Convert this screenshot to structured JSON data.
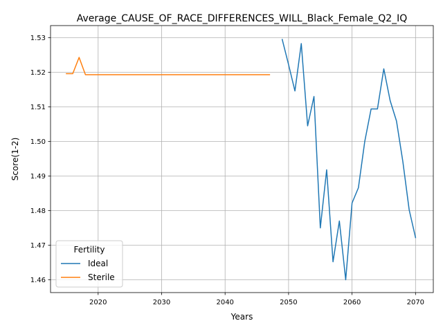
{
  "chart_data": {
    "type": "line",
    "title": "Average_CAUSE_OF_RACE_DIFFERENCES_WILL_Black_Female_Q2_IQ",
    "xlabel": "Years",
    "ylabel": "Score(1-2)",
    "xlim": [
      2012.5,
      2072.8
    ],
    "ylim": [
      1.4563,
      1.5335
    ],
    "xticks": [
      2020,
      2030,
      2040,
      2050,
      2060,
      2070
    ],
    "xtick_labels": [
      "2020",
      "2030",
      "2040",
      "2050",
      "2060",
      "2070"
    ],
    "yticks": [
      1.46,
      1.47,
      1.48,
      1.49,
      1.5,
      1.51,
      1.52,
      1.53
    ],
    "ytick_labels": [
      "1.46",
      "1.47",
      "1.48",
      "1.49",
      "1.50",
      "1.51",
      "1.52",
      "1.53"
    ],
    "grid": true,
    "legend": {
      "title": "Fertility",
      "placement": "lower-left"
    },
    "series": [
      {
        "name": "Ideal",
        "color": "#1f77b4",
        "x": [
          2049,
          2050,
          2051,
          2052,
          2053,
          2054,
          2055,
          2056,
          2057,
          2058,
          2059,
          2060,
          2061,
          2062,
          2063,
          2064,
          2065,
          2066,
          2067,
          2068,
          2069,
          2070
        ],
        "y": [
          1.5295,
          1.5222,
          1.5146,
          1.5283,
          1.5045,
          1.513,
          1.475,
          1.4918,
          1.4652,
          1.477,
          1.46,
          1.4822,
          1.4866,
          1.5,
          1.5094,
          1.5094,
          1.521,
          1.5118,
          1.5059,
          1.4942,
          1.4802,
          1.4722
        ]
      },
      {
        "name": "Sterile",
        "color": "#ff7f0e",
        "x": [
          2015,
          2016,
          2017,
          2018,
          2020,
          2025,
          2030,
          2035,
          2040,
          2045,
          2047
        ],
        "y": [
          1.5196,
          1.5196,
          1.5243,
          1.5193,
          1.5193,
          1.5193,
          1.5193,
          1.5193,
          1.5193,
          1.5193,
          1.5193
        ]
      }
    ]
  }
}
